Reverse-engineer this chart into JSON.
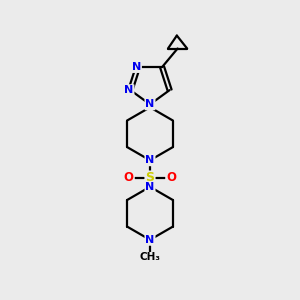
{
  "bg_color": "#ebebeb",
  "atom_colors": {
    "C": "#000000",
    "N": "#0000ee",
    "S": "#cccc00",
    "O": "#ff0000"
  },
  "bond_color": "#000000",
  "bond_width": 1.6,
  "font_size_atom": 8.5
}
